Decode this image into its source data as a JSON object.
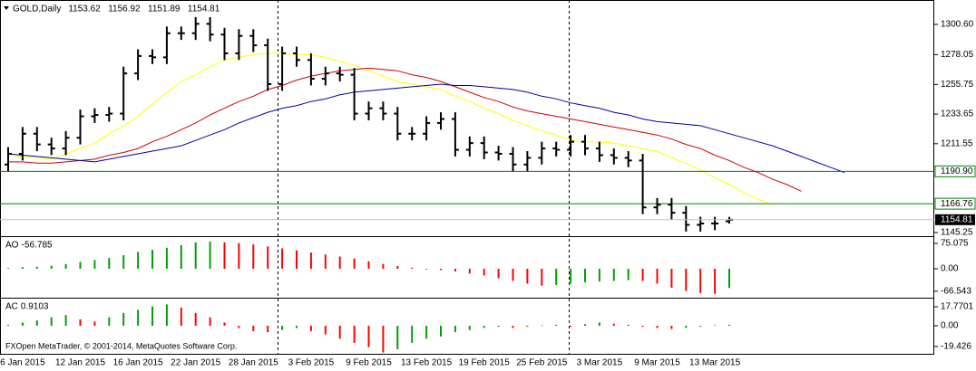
{
  "chart_data": [
    {
      "type": "ohlc",
      "title": "GOLD,Daily",
      "color": "#000000",
      "categories": [
        null,
        "6 Jan 2015",
        null,
        null,
        null,
        "12 Jan 2015",
        null,
        null,
        null,
        "16 Jan 2015",
        null,
        null,
        null,
        "22 Jan 2015",
        null,
        null,
        null,
        "28 Jan 2015",
        null,
        null,
        null,
        "3 Feb 2015",
        null,
        null,
        null,
        "9 Feb 2015",
        null,
        null,
        null,
        "13 Feb 2015",
        null,
        null,
        null,
        "19 Feb 2015",
        null,
        null,
        null,
        "25 Feb 2015",
        null,
        null,
        null,
        "3 Mar 2015",
        null,
        null,
        null,
        "9 Mar 2015",
        null,
        null,
        null,
        "13 Mar 2015",
        null,
        null,
        null,
        null,
        null,
        null,
        null,
        null,
        null
      ],
      "open": [
        1196,
        1204,
        1219,
        1211,
        1208,
        1216,
        1232,
        1233,
        1234,
        1264,
        1277,
        1276,
        1294,
        1294,
        1301,
        1293,
        1279,
        1292,
        1285,
        1256,
        1279,
        1274,
        1260,
        1264,
        1263,
        1234,
        1238,
        1234,
        1219,
        1219,
        1227,
        1230,
        1207,
        1212,
        1205,
        1204,
        1196,
        1201,
        1208,
        1207,
        1213,
        1208,
        1203,
        1201,
        1199,
        1164,
        1166,
        1160,
        1151,
        1152,
        1153.62,
        null,
        null,
        null,
        null,
        null,
        null,
        null,
        null
      ],
      "high": [
        1209,
        1224,
        1224,
        1216,
        1221,
        1237,
        1238,
        1239,
        1269,
        1282,
        1282,
        1299,
        1299,
        1306,
        1306,
        1298,
        1297,
        1297,
        1290,
        1284,
        1284,
        1279,
        1269,
        1269,
        1268,
        1243,
        1243,
        1239,
        1224,
        1232,
        1235,
        1235,
        1217,
        1217,
        1210,
        1209,
        1206,
        1213,
        1213,
        1218,
        1218,
        1213,
        1208,
        1206,
        1204,
        1171,
        1171,
        1165,
        1157,
        1157,
        1156.92,
        null,
        null,
        null,
        null,
        null,
        null,
        null,
        null
      ],
      "low": [
        1191,
        1199,
        1206,
        1203,
        1203,
        1211,
        1227,
        1228,
        1229,
        1259,
        1271,
        1271,
        1289,
        1289,
        1288,
        1274,
        1274,
        1280,
        1251,
        1251,
        1269,
        1255,
        1255,
        1258,
        1229,
        1229,
        1229,
        1214,
        1214,
        1214,
        1222,
        1202,
        1202,
        1200,
        1199,
        1191,
        1191,
        1196,
        1202,
        1202,
        1203,
        1198,
        1196,
        1194,
        1159,
        1159,
        1155,
        1146,
        1146,
        1147,
        1151.89,
        null,
        null,
        null,
        null,
        null,
        null,
        null,
        null
      ],
      "close": [
        1204,
        1219,
        1211,
        1208,
        1216,
        1232,
        1233,
        1234,
        1264,
        1277,
        1276,
        1294,
        1294,
        1301,
        1293,
        1279,
        1292,
        1285,
        1256,
        1279,
        1274,
        1260,
        1264,
        1263,
        1234,
        1238,
        1234,
        1219,
        1219,
        1227,
        1230,
        1207,
        1212,
        1205,
        1204,
        1196,
        1201,
        1208,
        1207,
        1213,
        1208,
        1203,
        1201,
        1199,
        1164,
        1166,
        1160,
        1151,
        1152,
        1152,
        1154.81,
        null,
        null,
        null,
        null,
        null,
        null,
        null,
        null
      ],
      "series": [
        {
          "color": "#ffff00",
          "values": [
            1203,
            1202,
            1201,
            1200,
            1204,
            1208,
            1212,
            1219,
            1225,
            1232,
            1241,
            1250,
            1258,
            1263,
            1269,
            1274,
            1276,
            1278,
            1279,
            1279,
            1278,
            1278,
            1276,
            1273,
            1270,
            1266,
            1262,
            1258,
            1256,
            1254,
            1252,
            1247,
            1243,
            1238,
            1234,
            1229,
            1225,
            1221,
            1218,
            1214,
            1213,
            1213,
            1212,
            1210,
            1208,
            1206,
            1201,
            1197,
            1192,
            1186,
            1181,
            1175,
            1170,
            1166,
            null,
            null,
            null,
            null,
            null
          ]
        },
        {
          "color": "#cc0000",
          "values": [
            1198,
            1198,
            1197,
            1197,
            1198,
            1199,
            1200,
            1203,
            1205,
            1208,
            1213,
            1217,
            1222,
            1227,
            1233,
            1238,
            1243,
            1247,
            1252,
            1255,
            1259,
            1262,
            1264,
            1266,
            1267,
            1268,
            1267,
            1266,
            1263,
            1261,
            1258,
            1254,
            1250,
            1246,
            1243,
            1239,
            1236,
            1234,
            1232,
            1230,
            1228,
            1226,
            1224,
            1222,
            1220,
            1218,
            1215,
            1211,
            1208,
            1203,
            1199,
            1194,
            1190,
            1185,
            1181,
            1176,
            null,
            null,
            null
          ]
        },
        {
          "color": "#0000aa",
          "values": [
            1204,
            1203,
            1202,
            1201,
            1200,
            1199,
            1198,
            1200,
            1202,
            1204,
            1206,
            1208,
            1210,
            1214,
            1218,
            1222,
            1227,
            1231,
            1235,
            1238,
            1240,
            1243,
            1245,
            1248,
            1250,
            1251,
            1252,
            1253,
            1254,
            1255,
            1256,
            1255,
            1255,
            1254,
            1253,
            1252,
            1250,
            1247,
            1245,
            1242,
            1240,
            1238,
            1235,
            1233,
            1230,
            1228,
            1227,
            1226,
            1225,
            1222,
            1219,
            1216,
            1213,
            1210,
            1206,
            1202,
            1198,
            1194,
            1190
          ]
        }
      ],
      "hlines": [
        {
          "value": 1190.9,
          "label": "1190.90",
          "color": "#008000"
        },
        {
          "value": 1166.76,
          "color": "#008000"
        }
      ],
      "ylim": [
        1143.2,
        1318.8
      ],
      "yticks": [
        {
          "value": 1300.6,
          "label": "1300.60"
        },
        1278.05,
        1255.75,
        1233.65,
        1211.55,
        1145.25
      ]
    },
    {
      "type": "histogram",
      "title": "AO",
      "up_color": "#00a000",
      "down_color": "#ff0000",
      "values": [
        2,
        5,
        6,
        9,
        14,
        20,
        26,
        32,
        40,
        50,
        56,
        62,
        70,
        78,
        80,
        78,
        76,
        72,
        66,
        60,
        54,
        48,
        42,
        36,
        30,
        22,
        14,
        8,
        3,
        -2,
        -4,
        -8,
        -14,
        -20,
        -28,
        -36,
        -44,
        -50,
        -48,
        -44,
        -40,
        -38,
        -36,
        -34,
        -36,
        -44,
        -56,
        -66,
        -72,
        -74,
        -56.785,
        null,
        null,
        null,
        null,
        null,
        null,
        null,
        null
      ],
      "ylim": [
        -82.9,
        90.9
      ],
      "yticks": [
        75.075,
        {
          "value": 0,
          "label": "0.00"
        },
        -66.543
      ]
    },
    {
      "type": "histogram",
      "title": "AC",
      "up_color": "#00a000",
      "down_color": "#ff0000",
      "values": [
        1,
        3,
        5,
        8,
        10,
        6,
        4,
        8,
        12,
        15,
        18,
        20,
        17,
        12,
        8,
        3,
        -2,
        -5,
        -6,
        -4,
        -2,
        -5,
        -8,
        -12,
        -16,
        -20,
        -25,
        -22,
        -16,
        -12,
        -10,
        -6,
        -4,
        -2,
        -1,
        -2,
        -1,
        0.5,
        1,
        -1,
        1.5,
        3,
        2,
        1,
        -1,
        -2,
        -3,
        -2,
        -1,
        0.5,
        0.9103,
        null,
        null,
        null,
        null,
        null,
        null,
        null,
        null
      ],
      "ylim": [
        -27.1,
        24.6
      ],
      "yticks": [
        17.7701,
        {
          "value": 0,
          "label": "0.00"
        },
        -19.426
      ]
    }
  ],
  "footer": "FXOpen MetaTrader, © 2001-2014, MetaQuotes Software Corp."
}
